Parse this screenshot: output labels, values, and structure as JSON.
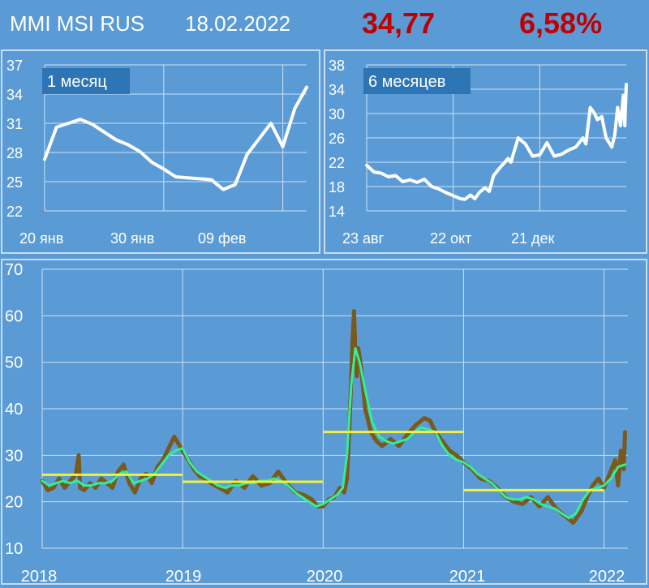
{
  "header": {
    "title": "MMI MSI RUS",
    "date": "18.02.2022",
    "value": "34,77",
    "change": "6,58%"
  },
  "colors": {
    "background": "#5b9bd5",
    "header_value": "#c00000",
    "panel_line": "#ffffff",
    "raw_series": "#7a5a1a",
    "smoothed_series": "#33ee99",
    "yearly_average": "#f2f23a"
  },
  "chart_data": [
    {
      "type": "line",
      "badge": "1 месяц",
      "x_labels": [
        "20 янв",
        "30 янв",
        "09 фев"
      ],
      "y_ticks": [
        22,
        25,
        28,
        31,
        34,
        37
      ],
      "ylim": [
        22,
        37
      ],
      "xlim": [
        0,
        22
      ],
      "grid": true,
      "x": [
        0,
        1,
        2,
        3,
        4,
        5,
        6,
        7,
        8,
        9,
        10,
        11,
        12,
        13,
        14,
        15,
        16,
        17,
        18,
        19,
        20,
        21,
        22
      ],
      "values": [
        27.3,
        30.6,
        31.0,
        31.4,
        30.9,
        30.1,
        29.3,
        28.8,
        28.1,
        27.0,
        26.3,
        25.5,
        25.4,
        25.3,
        25.2,
        24.2,
        24.7,
        27.8,
        29.4,
        31.0,
        28.6,
        32.5,
        34.7
      ]
    },
    {
      "type": "line",
      "badge": "6 месяцев",
      "x_labels": [
        "23 авг",
        "22 окт",
        "21 дек"
      ],
      "y_ticks": [
        14,
        18,
        22,
        26,
        30,
        34,
        38
      ],
      "ylim": [
        14,
        38
      ],
      "xlim": [
        0,
        180
      ],
      "grid": true,
      "x": [
        0,
        5,
        10,
        15,
        20,
        25,
        30,
        35,
        40,
        45,
        50,
        55,
        60,
        65,
        68,
        72,
        75,
        78,
        82,
        85,
        88,
        92,
        95,
        98,
        100,
        105,
        110,
        115,
        120,
        125,
        130,
        135,
        140,
        145,
        150,
        152,
        155,
        158,
        160,
        163,
        166,
        170,
        172,
        174,
        176,
        178,
        179,
        180
      ],
      "values": [
        21.5,
        20.4,
        20.2,
        19.6,
        19.8,
        18.8,
        19.1,
        18.7,
        19.2,
        18.0,
        17.6,
        17.0,
        16.5,
        16.0,
        15.9,
        16.6,
        16.0,
        17.0,
        17.8,
        17.2,
        19.8,
        21.0,
        21.8,
        22.6,
        22.0,
        26.0,
        25.0,
        23.0,
        23.2,
        25.2,
        23.0,
        23.3,
        24.0,
        24.5,
        26.0,
        25.0,
        31.0,
        30.0,
        29.0,
        29.5,
        26.0,
        24.5,
        26.5,
        31.0,
        28.0,
        33.0,
        28.0,
        34.8
      ]
    },
    {
      "type": "line",
      "x_labels": [
        "2018",
        "2019",
        "2020",
        "2021",
        "2022"
      ],
      "y_ticks": [
        10,
        20,
        30,
        40,
        50,
        60,
        70
      ],
      "ylim": [
        10,
        70
      ],
      "xlim": [
        2018.0,
        2022.17
      ],
      "grid": true,
      "series": [
        {
          "x": [
            2018.0,
            2018.04,
            2018.08,
            2018.12,
            2018.16,
            2018.2,
            2018.24,
            2018.26,
            2018.27,
            2018.3,
            2018.34,
            2018.38,
            2018.42,
            2018.46,
            2018.5,
            2018.54,
            2018.58,
            2018.62,
            2018.66,
            2018.7,
            2018.74,
            2018.78,
            2018.82,
            2018.86,
            2018.9,
            2018.94,
            2018.97,
            2019.0,
            2019.04,
            2019.08,
            2019.12,
            2019.16,
            2019.2,
            2019.26,
            2019.32,
            2019.38,
            2019.44,
            2019.5,
            2019.56,
            2019.62,
            2019.68,
            2019.74,
            2019.8,
            2019.86,
            2019.92,
            2019.96,
            2020.0,
            2020.04,
            2020.08,
            2020.12,
            2020.15,
            2020.17,
            2020.19,
            2020.21,
            2020.22,
            2020.23,
            2020.24,
            2020.25,
            2020.27,
            2020.3,
            2020.34,
            2020.38,
            2020.42,
            2020.48,
            2020.54,
            2020.6,
            2020.66,
            2020.72,
            2020.76,
            2020.8,
            2020.85,
            2020.9,
            2020.95,
            2021.0,
            2021.06,
            2021.12,
            2021.18,
            2021.24,
            2021.3,
            2021.36,
            2021.42,
            2021.48,
            2021.54,
            2021.6,
            2021.66,
            2021.72,
            2021.78,
            2021.84,
            2021.88,
            2021.92,
            2021.96,
            2022.0,
            2022.04,
            2022.08,
            2022.1,
            2022.12,
            2022.14,
            2022.15
          ],
          "values": [
            24.5,
            22.5,
            23.0,
            25.0,
            23.0,
            24.5,
            26.0,
            30.0,
            23.0,
            22.5,
            24.0,
            23.0,
            25.0,
            24.0,
            23.0,
            26.5,
            28.0,
            24.0,
            22.0,
            25.0,
            26.0,
            24.0,
            27.5,
            29.0,
            31.5,
            34.0,
            32.5,
            31.0,
            29.0,
            27.0,
            25.5,
            25.0,
            24.0,
            23.0,
            22.0,
            24.5,
            23.0,
            25.5,
            23.5,
            24.0,
            26.5,
            24.0,
            22.0,
            21.5,
            20.5,
            19.0,
            19.0,
            20.5,
            21.0,
            23.0,
            22.0,
            25.0,
            38.0,
            55.0,
            61.0,
            52.0,
            47.0,
            53.0,
            49.0,
            40.0,
            35.0,
            33.0,
            32.0,
            33.5,
            32.0,
            34.5,
            36.5,
            38.0,
            37.5,
            35.0,
            33.0,
            31.0,
            30.0,
            28.5,
            27.0,
            25.0,
            24.5,
            23.0,
            21.0,
            20.0,
            19.5,
            21.0,
            19.0,
            21.0,
            18.5,
            17.0,
            15.5,
            18.0,
            21.0,
            23.5,
            25.0,
            23.0,
            26.0,
            29.0,
            23.5,
            31.0,
            27.0,
            35.0
          ]
        },
        {
          "x": [
            2018.0,
            2018.05,
            2018.1,
            2018.15,
            2018.2,
            2018.25,
            2018.3,
            2018.35,
            2018.4,
            2018.45,
            2018.5,
            2018.55,
            2018.6,
            2018.65,
            2018.7,
            2018.75,
            2018.8,
            2018.85,
            2018.9,
            2018.95,
            2019.0,
            2019.05,
            2019.1,
            2019.15,
            2019.2,
            2019.25,
            2019.3,
            2019.35,
            2019.4,
            2019.45,
            2019.5,
            2019.55,
            2019.6,
            2019.65,
            2019.7,
            2019.75,
            2019.8,
            2019.85,
            2019.9,
            2019.95,
            2020.0,
            2020.05,
            2020.1,
            2020.14,
            2020.17,
            2020.2,
            2020.23,
            2020.26,
            2020.3,
            2020.35,
            2020.4,
            2020.45,
            2020.5,
            2020.55,
            2020.6,
            2020.65,
            2020.7,
            2020.75,
            2020.8,
            2020.85,
            2020.9,
            2020.95,
            2021.0,
            2021.05,
            2021.1,
            2021.15,
            2021.2,
            2021.25,
            2021.3,
            2021.35,
            2021.4,
            2021.45,
            2021.5,
            2021.55,
            2021.6,
            2021.65,
            2021.7,
            2021.75,
            2021.8,
            2021.85,
            2021.9,
            2021.95,
            2022.0,
            2022.05,
            2022.1,
            2022.15
          ],
          "values": [
            24.5,
            23.5,
            24.0,
            24.5,
            24.0,
            24.5,
            23.5,
            23.5,
            24.0,
            24.0,
            24.5,
            26.0,
            26.5,
            24.0,
            24.5,
            25.0,
            26.0,
            28.0,
            30.0,
            31.0,
            31.5,
            28.5,
            26.5,
            25.5,
            24.5,
            23.5,
            23.0,
            23.5,
            23.5,
            24.0,
            24.0,
            24.5,
            24.5,
            25.0,
            24.5,
            23.5,
            22.0,
            21.0,
            20.0,
            19.0,
            19.5,
            20.5,
            21.5,
            23.0,
            30.0,
            45.0,
            53.0,
            50.0,
            44.0,
            37.0,
            34.0,
            33.0,
            32.5,
            33.0,
            33.5,
            35.0,
            36.0,
            35.5,
            35.0,
            32.0,
            30.0,
            29.0,
            28.5,
            27.5,
            26.0,
            25.0,
            24.0,
            22.5,
            21.0,
            20.5,
            20.5,
            21.0,
            20.5,
            19.5,
            19.0,
            18.5,
            17.5,
            16.5,
            17.5,
            20.5,
            22.5,
            23.0,
            23.5,
            25.0,
            27.5,
            28.0
          ]
        },
        {
          "segments": [
            {
              "x": [
                2018.0,
                2019.0
              ],
              "y": 25.8
            },
            {
              "x": [
                2019.0,
                2020.0
              ],
              "y": 24.3
            },
            {
              "x": [
                2020.0,
                2021.0
              ],
              "y": 35.0
            },
            {
              "x": [
                2021.0,
                2022.0
              ],
              "y": 22.5
            }
          ]
        }
      ]
    }
  ]
}
